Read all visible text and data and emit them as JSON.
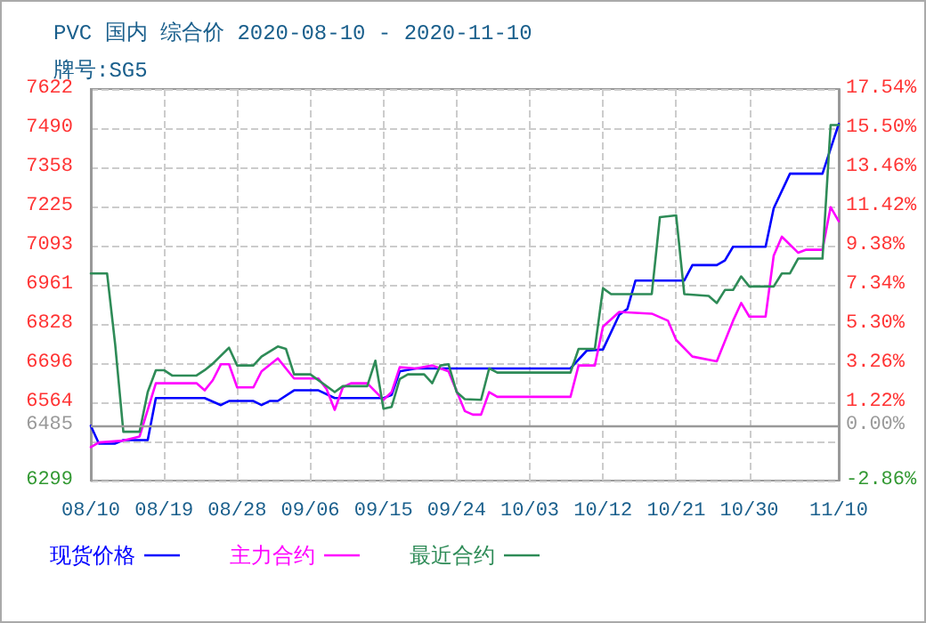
{
  "chart_data": {
    "type": "line",
    "title": "PVC 国内 综合价 2020-08-10 - 2020-11-10",
    "subtitle": "牌号:SG5",
    "xlim": [
      "2020-08-10",
      "2020-11-10"
    ],
    "xticks": [
      {
        "value": "2020-08-10",
        "label": "08/10"
      },
      {
        "value": "2020-08-19",
        "label": "08/19"
      },
      {
        "value": "2020-08-28",
        "label": "08/28"
      },
      {
        "value": "2020-09-06",
        "label": "09/06"
      },
      {
        "value": "2020-09-15",
        "label": "09/15"
      },
      {
        "value": "2020-09-24",
        "label": "09/24"
      },
      {
        "value": "2020-10-03",
        "label": "10/03"
      },
      {
        "value": "2020-10-12",
        "label": "10/12"
      },
      {
        "value": "2020-10-21",
        "label": "10/21"
      },
      {
        "value": "2020-10-30",
        "label": "10/30"
      },
      {
        "value": "2020-11-10",
        "label": "11/10"
      }
    ],
    "ylim": [
      6299,
      7622
    ],
    "yticks": [
      6299,
      {
        "value": 6431,
        "label": null
      },
      6485,
      6564,
      6696,
      6828,
      6961,
      7093,
      7225,
      7358,
      7490,
      7622
    ],
    "y2lim": [
      -2.86,
      17.54
    ],
    "y2ticks": [
      {
        "value": -2.86,
        "label": "-2.86%"
      },
      {
        "value": 0,
        "label": "0.00%"
      },
      {
        "value": 1.22,
        "label": "1.22%"
      },
      {
        "value": 3.26,
        "label": "3.26%"
      },
      {
        "value": 5.3,
        "label": "5.30%"
      },
      {
        "value": 7.34,
        "label": "7.34%"
      },
      {
        "value": 9.38,
        "label": "9.38%"
      },
      {
        "value": 11.42,
        "label": "11.42%"
      },
      {
        "value": 13.46,
        "label": "13.46%"
      },
      {
        "value": 15.5,
        "label": "15.50%"
      },
      {
        "value": 17.54,
        "label": "17.54%"
      }
    ],
    "ref_lines": [
      {
        "axis": "y",
        "value": 6485,
        "color": "#999999"
      }
    ],
    "grid": true,
    "legend": "bottom left",
    "marker": "none",
    "series": [
      {
        "name": "现货价格",
        "color": "#0000ff",
        "x": [
          "2020-08-10",
          "2020-08-11",
          "2020-08-13",
          "2020-08-14",
          "2020-08-17",
          "2020-08-18",
          "2020-08-24",
          "2020-08-26",
          "2020-08-27",
          "2020-08-30",
          "2020-08-31",
          "2020-09-01",
          "2020-09-02",
          "2020-09-04",
          "2020-09-07",
          "2020-09-09",
          "2020-09-15",
          "2020-09-16",
          "2020-09-17",
          "2020-09-19",
          "2020-10-08",
          "2020-10-10",
          "2020-10-12",
          "2020-10-14",
          "2020-10-15",
          "2020-10-16",
          "2020-10-22",
          "2020-10-23",
          "2020-10-26",
          "2020-10-27",
          "2020-10-28",
          "2020-11-01",
          "2020-11-02",
          "2020-11-04",
          "2020-11-08",
          "2020-11-09",
          "2020-11-10"
        ],
        "values": [
          6484,
          6424,
          6424,
          6436,
          6436,
          6578,
          6578,
          6554,
          6568,
          6568,
          6554,
          6568,
          6568,
          6604,
          6604,
          6578,
          6578,
          6588,
          6668,
          6678,
          6678,
          6738,
          6742,
          6859,
          6879,
          6975,
          6975,
          7027,
          7027,
          7043,
          7089,
          7089,
          7219,
          7336,
          7336,
          7420,
          7504
        ]
      },
      {
        "name": "主力合约",
        "color": "#ff00ff",
        "x": [
          "2020-08-10",
          "2020-08-11",
          "2020-08-14",
          "2020-08-16",
          "2020-08-18",
          "2020-08-23",
          "2020-08-24",
          "2020-08-25",
          "2020-08-26",
          "2020-08-27",
          "2020-08-28",
          "2020-08-30",
          "2020-08-31",
          "2020-09-02",
          "2020-09-04",
          "2020-09-07",
          "2020-09-08",
          "2020-09-09",
          "2020-09-10",
          "2020-09-11",
          "2020-09-13",
          "2020-09-15",
          "2020-09-16",
          "2020-09-17",
          "2020-09-19",
          "2020-09-21",
          "2020-09-23",
          "2020-09-25",
          "2020-09-26",
          "2020-09-27",
          "2020-09-28",
          "2020-09-29",
          "2020-10-08",
          "2020-10-09",
          "2020-10-11",
          "2020-10-12",
          "2020-10-14",
          "2020-10-18",
          "2020-10-20",
          "2020-10-21",
          "2020-10-23",
          "2020-10-26",
          "2020-10-28",
          "2020-10-29",
          "2020-10-30",
          "2020-11-01",
          "2020-11-02",
          "2020-11-03",
          "2020-11-05",
          "2020-11-06",
          "2020-11-08",
          "2020-11-09",
          "2020-11-10"
        ],
        "values": [
          6412,
          6428,
          6434,
          6448,
          6628,
          6628,
          6604,
          6638,
          6692,
          6692,
          6614,
          6614,
          6668,
          6712,
          6644,
          6644,
          6608,
          6538,
          6614,
          6628,
          6628,
          6572,
          6598,
          6682,
          6678,
          6688,
          6668,
          6534,
          6522,
          6522,
          6598,
          6582,
          6582,
          6688,
          6688,
          6819,
          6869,
          6863,
          6839,
          6774,
          6718,
          6702,
          6839,
          6899,
          6853,
          6853,
          7059,
          7123,
          7069,
          7079,
          7079,
          7223,
          7175
        ]
      },
      {
        "name": "最近合约",
        "color": "#2e8b57",
        "x": [
          "2020-08-10",
          "2020-08-12",
          "2020-08-13",
          "2020-08-14",
          "2020-08-16",
          "2020-08-17",
          "2020-08-18",
          "2020-08-19",
          "2020-08-20",
          "2020-08-23",
          "2020-08-24",
          "2020-08-25",
          "2020-08-27",
          "2020-08-28",
          "2020-08-30",
          "2020-08-31",
          "2020-09-02",
          "2020-09-03",
          "2020-09-04",
          "2020-09-06",
          "2020-09-09",
          "2020-09-10",
          "2020-09-13",
          "2020-09-14",
          "2020-09-15",
          "2020-09-16",
          "2020-09-17",
          "2020-09-18",
          "2020-09-20",
          "2020-09-21",
          "2020-09-22",
          "2020-09-23",
          "2020-09-24",
          "2020-09-25",
          "2020-09-27",
          "2020-09-28",
          "2020-09-29",
          "2020-10-08",
          "2020-10-09",
          "2020-10-11",
          "2020-10-12",
          "2020-10-13",
          "2020-10-18",
          "2020-10-19",
          "2020-10-21",
          "2020-10-22",
          "2020-10-25",
          "2020-10-26",
          "2020-10-27",
          "2020-10-28",
          "2020-10-29",
          "2020-10-30",
          "2020-11-02",
          "2020-11-03",
          "2020-11-04",
          "2020-11-05",
          "2020-11-08",
          "2020-11-09",
          "2020-11-10"
        ],
        "values": [
          6999,
          6999,
          6758,
          6464,
          6464,
          6598,
          6672,
          6672,
          6654,
          6654,
          6672,
          6694,
          6748,
          6688,
          6688,
          6718,
          6752,
          6744,
          6658,
          6658,
          6598,
          6618,
          6618,
          6704,
          6542,
          6548,
          6642,
          6658,
          6658,
          6628,
          6688,
          6692,
          6598,
          6574,
          6572,
          6678,
          6664,
          6664,
          6744,
          6744,
          6949,
          6929,
          6929,
          7189,
          7195,
          6929,
          6923,
          6899,
          6943,
          6943,
          6989,
          6955,
          6955,
          6999,
          6999,
          7049,
          7049,
          7500,
          7500
        ]
      }
    ]
  }
}
